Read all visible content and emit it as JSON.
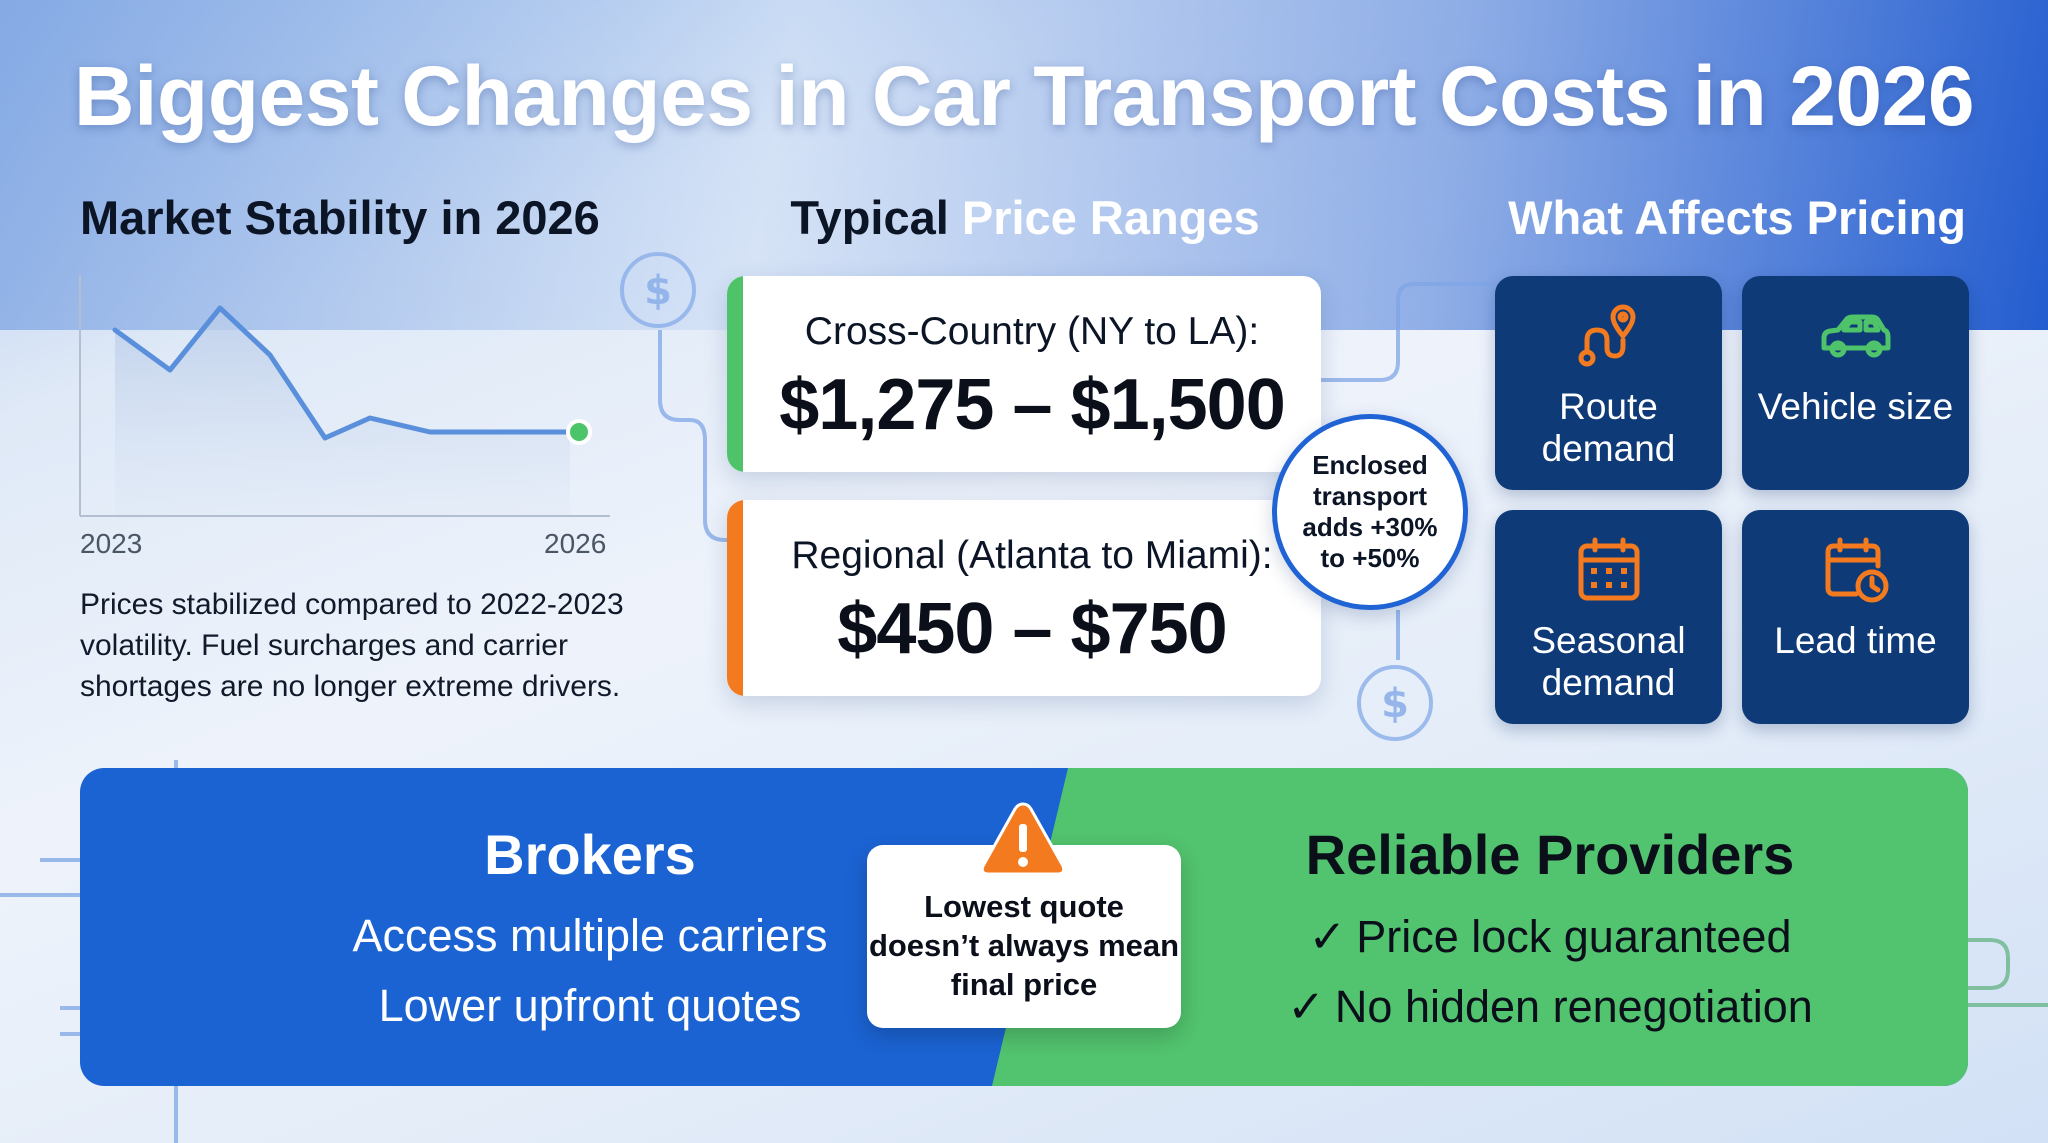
{
  "title": "Biggest Changes in Car Transport Costs in 2026",
  "market": {
    "heading": "Market Stability in 2026",
    "year_start": "2023",
    "year_end": "2026",
    "description": "Prices stabilized compared to 2022-2023 volatility. Fuel surcharges and carrier shortages are no longer extreme drivers."
  },
  "prices": {
    "heading_dark": "Typical",
    "heading_accent": "Price Ranges",
    "cross_country": {
      "route": "Cross-Country (NY to LA):",
      "range": "$1,275 – $1,500",
      "stripe_color": "#4fc36a"
    },
    "regional": {
      "route": "Regional (Atlanta to Miami):",
      "range": "$450 – $750",
      "stripe_color": "#f47a1f"
    },
    "enclosed_note": "Enclosed transport adds +30% to +50%"
  },
  "factors": {
    "heading": "What Affects Pricing",
    "items": [
      {
        "label": "Route demand",
        "icon": "route-icon",
        "icon_color": "#f47a1f"
      },
      {
        "label": "Vehicle size",
        "icon": "car-icon",
        "icon_color": "#4fc36a"
      },
      {
        "label": "Seasonal demand",
        "icon": "calendar-icon",
        "icon_color": "#f47a1f"
      },
      {
        "label": "Lead time",
        "icon": "calendar-clock-icon",
        "icon_color": "#f47a1f"
      }
    ]
  },
  "brokers": {
    "title": "Brokers",
    "lines": [
      "Access multiple carriers",
      "Lower upfront quotes"
    ]
  },
  "warning": {
    "text": "Lowest quote doesn’t always mean final price",
    "icon": "warning-icon"
  },
  "providers": {
    "title": "Reliable Providers",
    "check_symbol": "✓",
    "lines": [
      "Price lock guaranteed",
      "No hidden renegotiation"
    ]
  },
  "colors": {
    "brand_blue": "#1b63d3",
    "navy": "#0e3a78",
    "green": "#52c36e",
    "orange": "#f47a1f"
  }
}
